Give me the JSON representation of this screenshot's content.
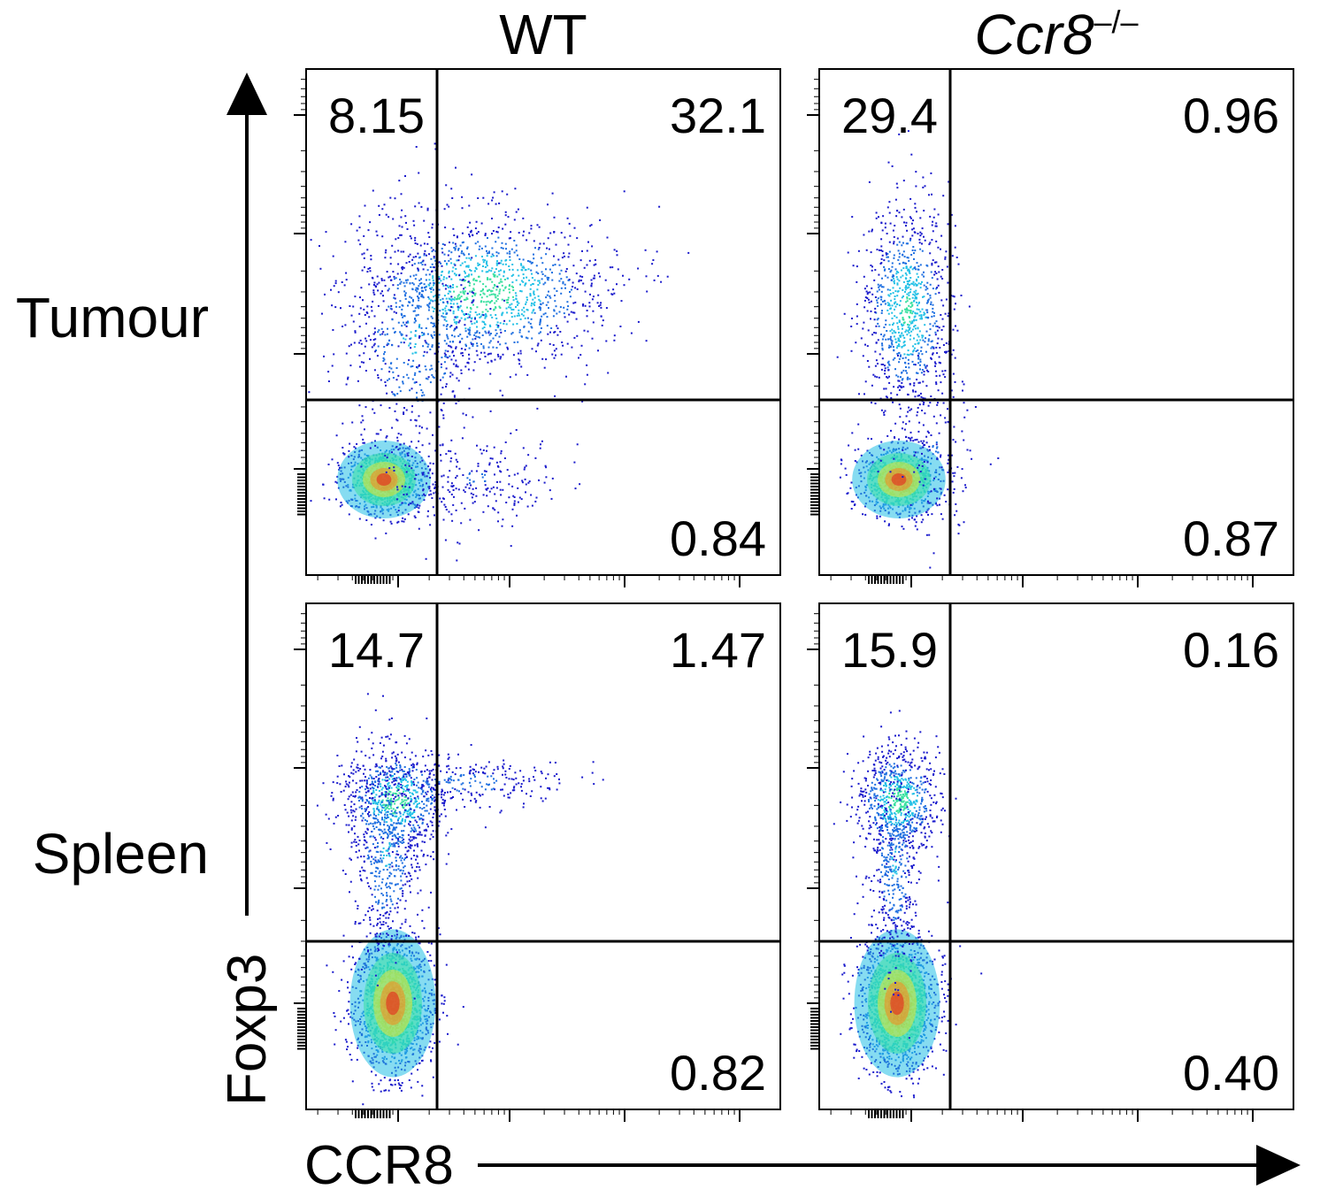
{
  "columns": [
    {
      "title": "WT",
      "italic": false,
      "superscript": ""
    },
    {
      "title": "Ccr8",
      "italic": true,
      "superscript": "–/–"
    }
  ],
  "rows": [
    "Tumour",
    "Spleen"
  ],
  "x_axis_label": "CCR8",
  "y_axis_label": "Foxp3",
  "chart_data": {
    "type": "scatter",
    "description_axes": {
      "x": "CCR8",
      "y": "Foxp3",
      "scale": "log"
    },
    "panels": [
      {
        "row": "Tumour",
        "column": "WT",
        "quadrants": {
          "upper_left": "8.15",
          "upper_right": "32.1",
          "lower_right": "0.84"
        }
      },
      {
        "row": "Tumour",
        "column": "Ccr8–/–",
        "quadrants": {
          "upper_left": "29.4",
          "upper_right": "0.96",
          "lower_right": "0.87"
        }
      },
      {
        "row": "Spleen",
        "column": "WT",
        "quadrants": {
          "upper_left": "14.7",
          "upper_right": "1.47",
          "lower_right": "0.82"
        }
      },
      {
        "row": "Spleen",
        "column": "Ccr8–/–",
        "quadrants": {
          "upper_left": "15.9",
          "upper_right": "0.16",
          "lower_right": "0.40"
        }
      }
    ],
    "colormap": [
      "#1a1acc",
      "#1e6fe0",
      "#22c0e6",
      "#39e0a0",
      "#d8e63a",
      "#f58a1f",
      "#e61a1a"
    ]
  }
}
